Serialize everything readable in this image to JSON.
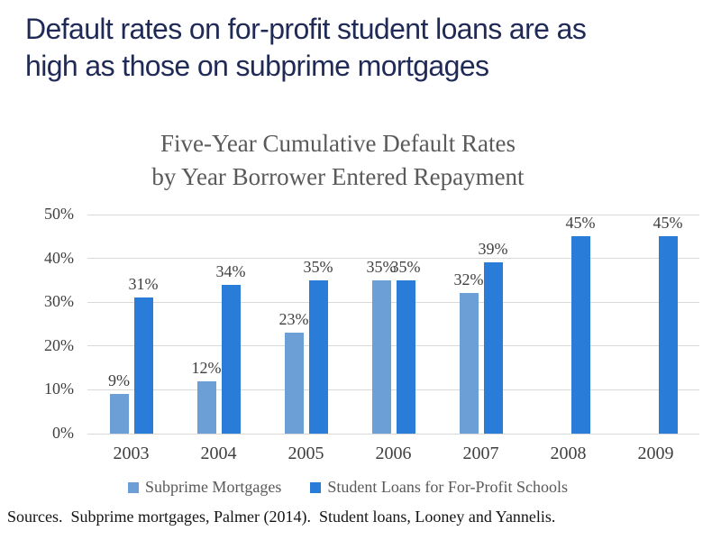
{
  "page": {
    "title_line1": "Default rates on for-profit student loans are as",
    "title_line2": "high as those on subprime mortgages",
    "source_note": "Sources.  Subprime mortgages, Palmer (2014).  Student loans, Looney and Yannelis."
  },
  "colors": {
    "title_navy": "#1F2A56",
    "chart_text_gray": "#5A5A5A",
    "axis_text": "#3F3F3F",
    "gridline": "#D9D9D9",
    "series_light_blue": "#6C9FD6",
    "series_dark_blue": "#2A7CD9"
  },
  "chart_data": {
    "type": "bar",
    "title_line1": "Five-Year Cumulative Default Rates",
    "title_line2": "by Year Borrower Entered Repayment",
    "categories": [
      "2003",
      "2004",
      "2005",
      "2006",
      "2007",
      "2008",
      "2009"
    ],
    "series": [
      {
        "name": "Subprime Mortgages",
        "color": "#6C9FD6",
        "values": [
          9,
          12,
          23,
          35,
          32,
          null,
          null
        ]
      },
      {
        "name": "Student Loans for For-Profit Schools",
        "color": "#2A7CD9",
        "values": [
          31,
          34,
          35,
          35,
          39,
          45,
          45
        ]
      }
    ],
    "data_labels": [
      "9%",
      "12%",
      "23%",
      "35%",
      "32%",
      "31%",
      "34%",
      "35%",
      "35%",
      "39%",
      "45%",
      "45%"
    ],
    "y_ticks": [
      "0%",
      "10%",
      "20%",
      "30%",
      "40%",
      "50%"
    ],
    "ylim": [
      0,
      50
    ],
    "grid": true,
    "legend_position": "bottom",
    "data_label_suffix": "%"
  }
}
